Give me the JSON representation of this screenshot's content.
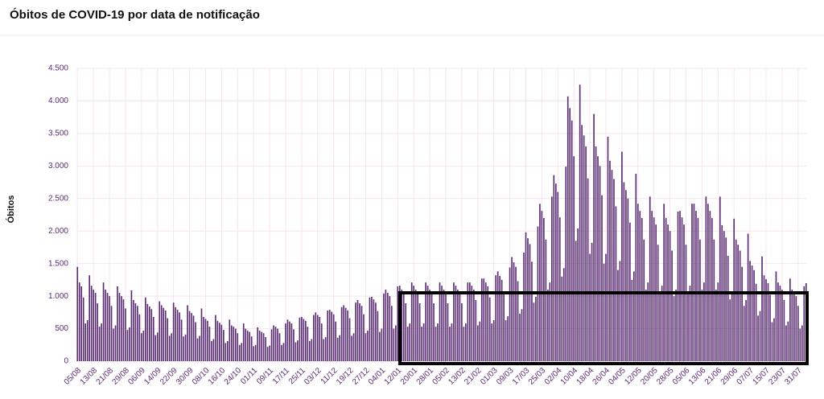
{
  "chart_data": {
    "type": "bar",
    "title": "Óbitos de COVID-19 por data de notificação",
    "y_label": "Óbitos",
    "categories": [
      "05/08",
      null,
      null,
      null,
      null,
      null,
      null,
      null,
      "13/08",
      null,
      null,
      null,
      null,
      null,
      null,
      null,
      "21/08",
      null,
      null,
      null,
      null,
      null,
      null,
      null,
      "29/08",
      null,
      null,
      null,
      null,
      null,
      null,
      null,
      "06/09",
      null,
      null,
      null,
      null,
      null,
      null,
      null,
      "14/09",
      null,
      null,
      null,
      null,
      null,
      null,
      null,
      "22/09",
      null,
      null,
      null,
      null,
      null,
      null,
      null,
      "30/09",
      null,
      null,
      null,
      null,
      null,
      null,
      null,
      "08/10",
      null,
      null,
      null,
      null,
      null,
      null,
      null,
      "16/10",
      null,
      null,
      null,
      null,
      null,
      null,
      null,
      "24/10",
      null,
      null,
      null,
      null,
      null,
      null,
      null,
      "01/11",
      null,
      null,
      null,
      null,
      null,
      null,
      null,
      "09/11",
      null,
      null,
      null,
      null,
      null,
      null,
      null,
      "17/11",
      null,
      null,
      null,
      null,
      null,
      null,
      null,
      "25/11",
      null,
      null,
      null,
      null,
      null,
      null,
      null,
      "03/12",
      null,
      null,
      null,
      null,
      null,
      null,
      null,
      "11/12",
      null,
      null,
      null,
      null,
      null,
      null,
      null,
      "19/12",
      null,
      null,
      null,
      null,
      null,
      null,
      null,
      "27/12",
      null,
      null,
      null,
      null,
      null,
      null,
      null,
      "04/01",
      null,
      null,
      null,
      null,
      null,
      null,
      null,
      "12/01",
      null,
      null,
      null,
      null,
      null,
      null,
      null,
      "20/01",
      null,
      null,
      null,
      null,
      null,
      null,
      null,
      "28/01",
      null,
      null,
      null,
      null,
      null,
      null,
      null,
      "05/02",
      null,
      null,
      null,
      null,
      null,
      null,
      null,
      "13/02",
      null,
      null,
      null,
      null,
      null,
      null,
      null,
      "21/02",
      null,
      null,
      null,
      null,
      null,
      null,
      null,
      "01/03",
      null,
      null,
      null,
      null,
      null,
      null,
      null,
      "09/03",
      null,
      null,
      null,
      null,
      null,
      null,
      null,
      "17/03",
      null,
      null,
      null,
      null,
      null,
      null,
      null,
      "25/03",
      null,
      null,
      null,
      null,
      null,
      null,
      null,
      "02/04",
      null,
      null,
      null,
      null,
      null,
      null,
      null,
      "10/04",
      null,
      null,
      null,
      null,
      null,
      null,
      null,
      "18/04",
      null,
      null,
      null,
      null,
      null,
      null,
      null,
      "26/04",
      null,
      null,
      null,
      null,
      null,
      null,
      null,
      "04/05",
      null,
      null,
      null,
      null,
      null,
      null,
      null,
      "12/05",
      null,
      null,
      null,
      null,
      null,
      null,
      null,
      "20/05",
      null,
      null,
      null,
      null,
      null,
      null,
      null,
      "28/05",
      null,
      null,
      null,
      null,
      null,
      null,
      null,
      "05/06",
      null,
      null,
      null,
      null,
      null,
      null,
      null,
      "13/06",
      null,
      null,
      null,
      null,
      null,
      null,
      null,
      "21/06",
      null,
      null,
      null,
      null,
      null,
      null,
      null,
      "29/06",
      null,
      null,
      null,
      null,
      null,
      null,
      null,
      "07/07",
      null,
      null,
      null,
      null,
      null,
      null,
      null,
      "15/07",
      null,
      null,
      null,
      null,
      null,
      null,
      null,
      "23/07",
      null,
      null,
      null,
      null,
      null,
      null,
      null,
      "31/07",
      null,
      null,
      null,
      null
    ],
    "values": [
      1450,
      1210,
      1150,
      980,
      580,
      630,
      1320,
      1160,
      1100,
      1050,
      890,
      530,
      580,
      1210,
      1100,
      1050,
      1000,
      850,
      500,
      550,
      1150,
      1050,
      1000,
      950,
      810,
      480,
      520,
      1090,
      940,
      890,
      850,
      720,
      430,
      470,
      980,
      880,
      840,
      800,
      680,
      400,
      440,
      920,
      860,
      820,
      780,
      660,
      390,
      430,
      900,
      830,
      790,
      750,
      640,
      380,
      410,
      860,
      770,
      740,
      700,
      600,
      350,
      390,
      810,
      680,
      650,
      620,
      530,
      310,
      340,
      710,
      620,
      590,
      560,
      480,
      280,
      310,
      640,
      550,
      530,
      500,
      430,
      250,
      280,
      580,
      500,
      470,
      450,
      380,
      230,
      250,
      520,
      470,
      450,
      430,
      370,
      220,
      240,
      490,
      550,
      530,
      500,
      430,
      250,
      280,
      580,
      640,
      610,
      580,
      490,
      290,
      320,
      670,
      680,
      650,
      620,
      530,
      310,
      340,
      710,
      750,
      710,
      680,
      580,
      340,
      370,
      780,
      790,
      760,
      720,
      610,
      360,
      400,
      830,
      860,
      820,
      780,
      660,
      390,
      430,
      900,
      940,
      890,
      850,
      720,
      430,
      470,
      980,
      990,
      950,
      900,
      770,
      450,
      500,
      1040,
      1100,
      1050,
      1000,
      850,
      500,
      550,
      1150,
      1160,
      1100,
      1050,
      890,
      530,
      580,
      1210,
      1160,
      1100,
      1050,
      890,
      530,
      580,
      1210,
      1160,
      1100,
      1050,
      890,
      530,
      580,
      1210,
      1160,
      1100,
      1050,
      890,
      530,
      580,
      1210,
      1160,
      1100,
      1050,
      890,
      530,
      580,
      1210,
      1210,
      1160,
      1100,
      940,
      550,
      610,
      1270,
      1270,
      1210,
      1150,
      980,
      580,
      630,
      1320,
      1380,
      1310,
      1250,
      1060,
      630,
      690,
      1440,
      1600,
      1520,
      1450,
      1230,
      730,
      800,
      1670,
      1980,
      1890,
      1800,
      1530,
      900,
      990,
      2070,
      2420,
      2310,
      2200,
      1870,
      1100,
      1210,
      2530,
      2860,
      2730,
      2600,
      2210,
      1300,
      1430,
      2990,
      4070,
      3890,
      3700,
      3150,
      1850,
      2040,
      4250,
      3630,
      3470,
      3300,
      2810,
      1650,
      1820,
      3800,
      3300,
      3150,
      3000,
      2550,
      1500,
      1650,
      3450,
      3080,
      2940,
      2800,
      2380,
      1400,
      1540,
      3220,
      2750,
      2630,
      2500,
      2130,
      1250,
      1380,
      2880,
      2420,
      2310,
      2200,
      1870,
      1100,
      1210,
      2530,
      2310,
      2210,
      2100,
      1790,
      1050,
      1160,
      2420,
      2200,
      2100,
      2000,
      1700,
      1000,
      1100,
      2300,
      2310,
      2210,
      2100,
      1790,
      1050,
      1160,
      2420,
      2420,
      2310,
      2200,
      1870,
      1100,
      1210,
      2530,
      2420,
      2310,
      2200,
      1870,
      1100,
      1210,
      2530,
      2090,
      2000,
      1900,
      1620,
      950,
      1050,
      2190,
      1870,
      1790,
      1700,
      1450,
      850,
      940,
      1960,
      1540,
      1470,
      1400,
      1190,
      700,
      770,
      1610,
      1320,
      1260,
      1200,
      1020,
      600,
      660,
      1380,
      1210,
      1160,
      1100,
      940,
      550,
      610,
      1270,
      1100,
      1050,
      1000,
      850,
      500,
      550,
      1150,
      1200
    ],
    "color": "#5a2d72",
    "ylim": [
      0,
      4500
    ],
    "yticks": [
      0,
      500,
      {
        "value": 1000,
        "label": "1.000"
      },
      {
        "value": 1500,
        "label": "1.500"
      },
      {
        "value": 2000,
        "label": "2.000"
      },
      {
        "value": 2500,
        "label": "2.500"
      },
      {
        "value": 3000,
        "label": "3.000"
      },
      {
        "value": 3500,
        "label": "3.500"
      },
      {
        "value": 4000,
        "label": "4.000"
      },
      {
        "value": 4500,
        "label": "4.500"
      }
    ],
    "grid": true
  }
}
